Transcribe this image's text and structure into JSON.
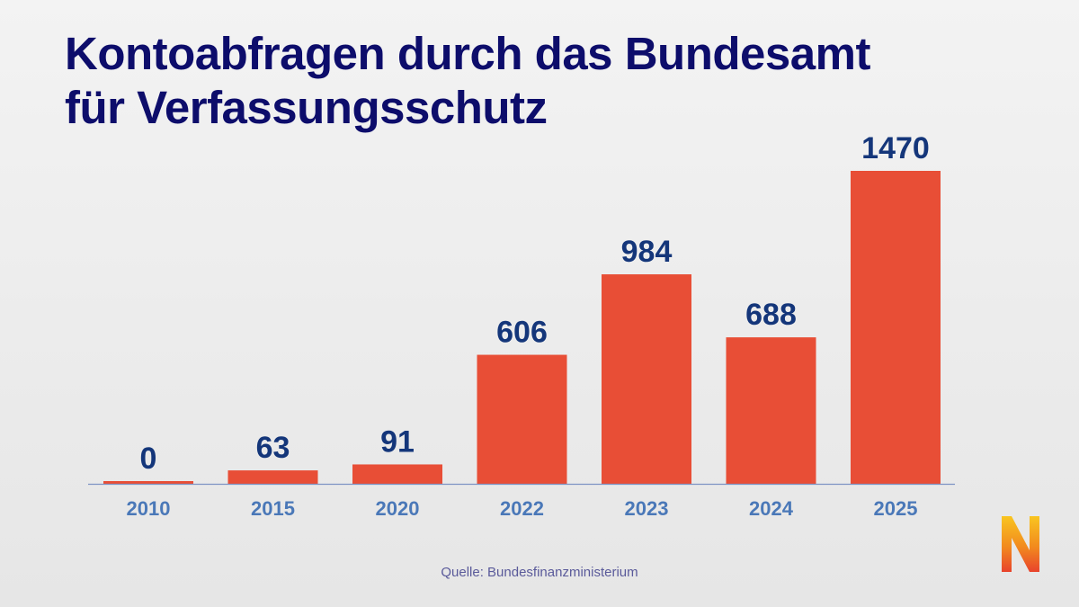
{
  "title": {
    "line1": "Kontoabfragen durch das Bundesamt",
    "line2": "für Verfassungsschutz"
  },
  "source": "Quelle: Bundesfinanzministerium",
  "logo_letter": "N",
  "colors": {
    "bar": "#e84e36",
    "value_label": "#14367a",
    "tick_label": "#4a78b8",
    "axis": "#7d93c4",
    "title": "#0d0d6b"
  },
  "chart_data": {
    "type": "bar",
    "categories": [
      "2010",
      "2015",
      "2020",
      "2022",
      "2023",
      "2024",
      "2025"
    ],
    "values": [
      0,
      63,
      91,
      606,
      984,
      688,
      1470
    ],
    "title": "Kontoabfragen durch das Bundesamt für Verfassungsschutz",
    "xlabel": "",
    "ylabel": "",
    "ylim": [
      0,
      1470
    ],
    "grid": false,
    "legend": "none",
    "data_labels": true
  }
}
